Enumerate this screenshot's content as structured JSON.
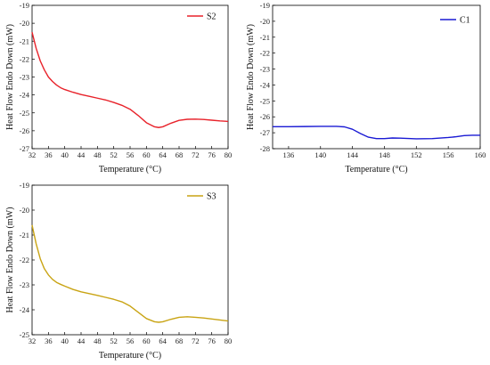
{
  "chart_data": [
    {
      "type": "line",
      "xlabel": "Temperature (°C)",
      "ylabel": "Heat Flow Endo Down (mW)",
      "xlim": [
        32,
        80
      ],
      "ylim": [
        -27,
        -19
      ],
      "xticks": [
        32,
        36,
        40,
        44,
        48,
        52,
        56,
        60,
        64,
        68,
        72,
        76,
        80
      ],
      "yticks": [
        -19,
        -20,
        -21,
        -22,
        -23,
        -24,
        -25,
        -26,
        -27
      ],
      "legend_position": "top-right",
      "grid": false,
      "series": [
        {
          "name": "S2",
          "color": "#e8222a",
          "x": [
            32,
            33,
            34,
            35,
            36,
            37,
            38,
            39,
            40,
            42,
            44,
            46,
            48,
            50,
            52,
            54,
            56,
            58,
            60,
            62,
            63,
            64,
            66,
            68,
            70,
            72,
            74,
            76,
            78,
            80
          ],
          "y": [
            -20.5,
            -21.4,
            -22.1,
            -22.6,
            -23.0,
            -23.25,
            -23.45,
            -23.6,
            -23.7,
            -23.85,
            -23.98,
            -24.08,
            -24.18,
            -24.28,
            -24.42,
            -24.58,
            -24.8,
            -25.15,
            -25.55,
            -25.78,
            -25.82,
            -25.78,
            -25.58,
            -25.42,
            -25.36,
            -25.35,
            -25.37,
            -25.41,
            -25.45,
            -25.48
          ]
        }
      ]
    },
    {
      "type": "line",
      "xlabel": "Temperature (°C)",
      "ylabel": "Heat Flow Endo Down (mW)",
      "xlim": [
        134,
        160
      ],
      "ylim": [
        -28,
        -19
      ],
      "xticks": [
        136,
        140,
        144,
        148,
        152,
        156,
        160
      ],
      "yticks": [
        -19,
        -20,
        -21,
        -22,
        -23,
        -24,
        -25,
        -26,
        -27,
        -28
      ],
      "legend_position": "top-right",
      "grid": false,
      "series": [
        {
          "name": "C1",
          "color": "#1a1ad4",
          "x": [
            134,
            136,
            138,
            140,
            142,
            143,
            144,
            145,
            146,
            147,
            148,
            149,
            150,
            152,
            154,
            156,
            157,
            158,
            159,
            160
          ],
          "y": [
            -26.62,
            -26.62,
            -26.61,
            -26.6,
            -26.6,
            -26.63,
            -26.78,
            -27.05,
            -27.28,
            -27.37,
            -27.37,
            -27.33,
            -27.34,
            -27.38,
            -27.37,
            -27.3,
            -27.25,
            -27.18,
            -27.16,
            -27.16
          ]
        }
      ]
    },
    {
      "type": "line",
      "xlabel": "Temperature (°C)",
      "ylabel": "Heat Flow Endo Down (mW)",
      "xlim": [
        32,
        80
      ],
      "ylim": [
        -25,
        -19
      ],
      "xticks": [
        32,
        36,
        40,
        44,
        48,
        52,
        56,
        60,
        64,
        68,
        72,
        76,
        80
      ],
      "yticks": [
        -19,
        -20,
        -21,
        -22,
        -23,
        -24,
        -25
      ],
      "legend_position": "top-right",
      "grid": false,
      "series": [
        {
          "name": "S3",
          "color": "#c9a414",
          "x": [
            32,
            33,
            34,
            35,
            36,
            37,
            38,
            39,
            40,
            42,
            44,
            46,
            48,
            50,
            52,
            54,
            56,
            58,
            60,
            62,
            63,
            64,
            66,
            68,
            70,
            72,
            74,
            76,
            78,
            80
          ],
          "y": [
            -20.6,
            -21.35,
            -21.95,
            -22.35,
            -22.6,
            -22.78,
            -22.9,
            -22.98,
            -23.05,
            -23.18,
            -23.28,
            -23.35,
            -23.42,
            -23.5,
            -23.58,
            -23.68,
            -23.85,
            -24.1,
            -24.35,
            -24.48,
            -24.5,
            -24.48,
            -24.38,
            -24.3,
            -24.28,
            -24.3,
            -24.33,
            -24.37,
            -24.41,
            -24.45
          ]
        }
      ]
    }
  ]
}
